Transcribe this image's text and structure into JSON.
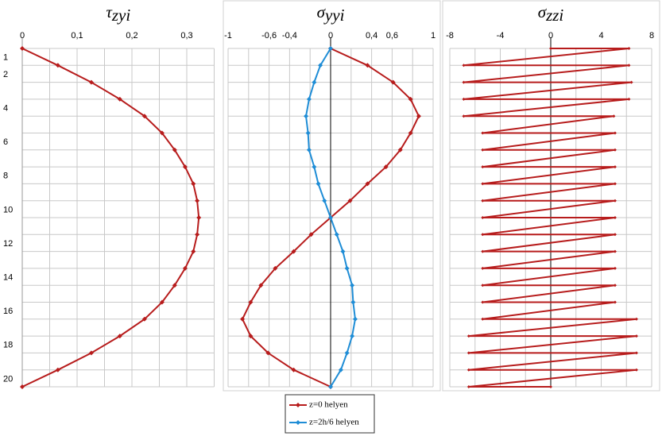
{
  "chart_data": [
    {
      "type": "line",
      "title": "τ",
      "title_sub": "zyi",
      "color": "#b71c1c",
      "values": [
        0,
        0.065,
        0.126,
        0.178,
        0.223,
        0.255,
        0.278,
        0.297,
        0.312,
        0.319,
        0.322,
        0.319,
        0.312,
        0.297,
        0.278,
        0.255,
        0.223,
        0.178,
        0.126,
        0.065,
        0
      ],
      "xlim": [
        0,
        0.35
      ],
      "xticks": [
        0,
        {
          "value": 0.1,
          "label": "0,1"
        },
        {
          "value": 0.2,
          "label": "0,2"
        },
        {
          "value": 0.3,
          "label": "0,3"
        }
      ],
      "xgrid": [
        0,
        0.05,
        0.1,
        0.15,
        0.2,
        0.25,
        0.3,
        0.35
      ],
      "ylim": [
        0,
        20
      ],
      "yticks": [
        1,
        2,
        4,
        6,
        8,
        10,
        12,
        14,
        16,
        18,
        20
      ],
      "ygrid": [
        0,
        1,
        2,
        3,
        4,
        5,
        6,
        7,
        8,
        9,
        10,
        11,
        12,
        13,
        14,
        15,
        16,
        17,
        18,
        19,
        20
      ],
      "grid": true
    },
    {
      "type": "line",
      "title": "σ",
      "title_sub": "yyi",
      "series": [
        {
          "name": "z=0 helyen",
          "color": "#b71c1c",
          "values": [
            0,
            0.36,
            0.61,
            0.78,
            0.86,
            0.78,
            0.68,
            0.54,
            0.36,
            0.19,
            0,
            -0.19,
            -0.36,
            -0.54,
            -0.68,
            -0.78,
            -0.86,
            -0.78,
            -0.61,
            -0.36,
            0
          ]
        },
        {
          "name": "z=2h/6 helyen",
          "color": "#1f8dd6",
          "values": [
            0,
            -0.1,
            -0.16,
            -0.21,
            -0.24,
            -0.22,
            -0.21,
            -0.16,
            -0.12,
            -0.06,
            0,
            0.06,
            0.12,
            0.16,
            0.21,
            0.22,
            0.24,
            0.21,
            0.16,
            0.1,
            0
          ]
        }
      ],
      "xlim": [
        -1,
        1
      ],
      "xticks": [
        -1,
        {
          "value": -0.6,
          "label": "-0,6"
        },
        {
          "value": -0.4,
          "label": "-0,4"
        },
        0,
        {
          "value": 0.4,
          "label": "0,4"
        },
        {
          "value": 0.6,
          "label": "0,6"
        },
        1
      ],
      "xgrid": [
        -1,
        -0.8,
        -0.6,
        -0.4,
        -0.2,
        0,
        0.2,
        0.4,
        0.6,
        0.8,
        1
      ],
      "ylim": [
        0,
        20
      ],
      "ygrid": [
        0,
        1,
        2,
        3,
        4,
        5,
        6,
        7,
        8,
        9,
        10,
        11,
        12,
        13,
        14,
        15,
        16,
        17,
        18,
        19,
        20
      ],
      "grid": true,
      "legend": "bottom"
    },
    {
      "type": "line",
      "title": "σ",
      "title_sub": "zzi",
      "color": "#b71c1c",
      "x": [
        0,
        6.2,
        -6.9,
        6.2,
        -6.9,
        6.4,
        -6.9,
        6.2,
        -6.9,
        5.0,
        -5.4,
        5.1,
        -5.4,
        5.1,
        -5.4,
        5.1,
        -5.4,
        5.1,
        -5.4,
        5.1,
        -5.4,
        5.1,
        -5.4,
        5.1,
        -5.4,
        5.1,
        -5.4,
        5.1,
        -5.4,
        5.1,
        -5.4,
        5.1,
        -5.4,
        6.8,
        -6.5,
        6.8,
        -6.5,
        6.8,
        -6.5,
        6.8,
        -6.5,
        0
      ],
      "values": [
        0,
        0,
        1,
        1,
        2,
        2,
        3,
        3,
        4,
        4,
        5,
        5,
        6,
        6,
        7,
        7,
        8,
        8,
        9,
        9,
        10,
        10,
        11,
        11,
        12,
        12,
        13,
        13,
        14,
        14,
        15,
        15,
        16,
        16,
        17,
        17,
        18,
        18,
        19,
        19,
        20,
        20
      ],
      "xlim": [
        -8,
        8
      ],
      "xticks": [
        -8,
        -4,
        0,
        4,
        8
      ],
      "xgrid": [
        -8,
        -6,
        -4,
        -2,
        0,
        2,
        4,
        6,
        8
      ],
      "ylim": [
        0,
        20
      ],
      "ygrid": [
        0,
        1,
        2,
        3,
        4,
        5,
        6,
        7,
        8,
        9,
        10,
        11,
        12,
        13,
        14,
        15,
        16,
        17,
        18,
        19,
        20
      ],
      "grid": true
    }
  ]
}
